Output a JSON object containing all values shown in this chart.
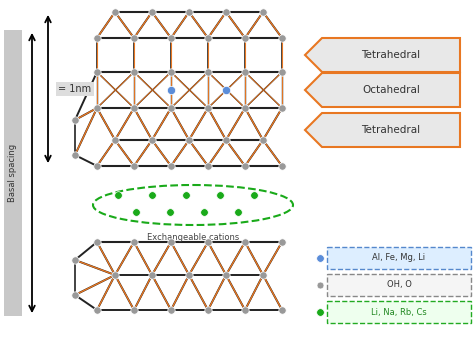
{
  "bg_color": "#ffffff",
  "gray_node_color": "#999999",
  "blue_node_color": "#5b8dd9",
  "green_node_color": "#1aaa1a",
  "orange_line_color": "#e87722",
  "black_line_color": "#222222",
  "arrow_border": "#e87722",
  "arrow_fill": "#e8e8e8",
  "labels": {
    "basal_spacing": "Basal spacing",
    "nm": "= 1nm",
    "exchangeable": "Exchangeable cations",
    "tetrahedral": "Tetrahedral",
    "octahedral": "Octahedral",
    "legend1": "Al, Fe, Mg, Li",
    "legend2": "OH, O",
    "legend3": "Li, Na, Rb, Cs"
  }
}
